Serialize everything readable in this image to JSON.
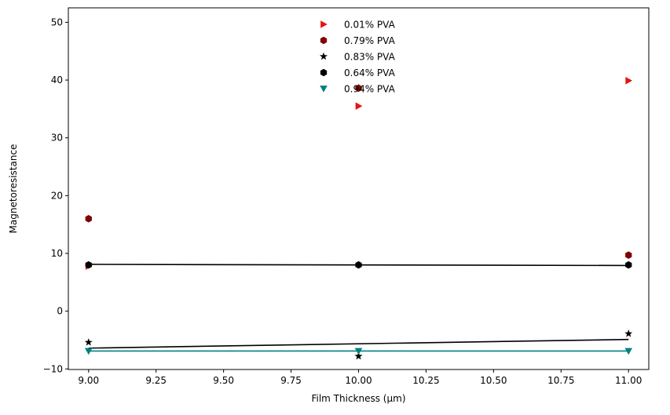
{
  "chart_data": {
    "type": "scatter",
    "title": "",
    "xlabel": "Film Thickness (μm)",
    "ylabel": "Magnetoresistance",
    "xlim": [
      8.925,
      11.075
    ],
    "ylim": [
      -10.1,
      52.5
    ],
    "xticks": [
      "9.00",
      "9.25",
      "9.50",
      "9.75",
      "10.00",
      "10.25",
      "10.50",
      "10.75",
      "11.00"
    ],
    "yticks": [
      "−10",
      "0",
      "10",
      "20",
      "30",
      "40",
      "50"
    ],
    "grid": false,
    "legend_position": "top-center",
    "series": [
      {
        "name": "0.01% PVA",
        "marker": "triangle-right",
        "color": "#e8120c",
        "x": [
          9,
          10,
          11
        ],
        "y": [
          7.8,
          35.5,
          39.9
        ]
      },
      {
        "name": "0.79% PVA",
        "marker": "hexagon",
        "color": "#800000",
        "x": [
          9,
          10,
          11
        ],
        "y": [
          16.0,
          38.6,
          9.7
        ]
      },
      {
        "name": "0.83% PVA",
        "marker": "star",
        "color": "#000000",
        "x": [
          9,
          10,
          11
        ],
        "y": [
          -5.4,
          -7.8,
          -3.9
        ]
      },
      {
        "name": "0.64% PVA",
        "marker": "hexagon",
        "color": "#000000",
        "x": [
          9,
          10,
          11
        ],
        "y": [
          8.0,
          8.0,
          8.0
        ]
      },
      {
        "name": "0.94% PVA",
        "marker": "triangle-down",
        "color": "#008080",
        "x": [
          9,
          10,
          11
        ],
        "y": [
          -6.9,
          -6.9,
          -6.9
        ]
      }
    ],
    "fit_lines": [
      {
        "color": "#000000",
        "x": [
          9,
          11
        ],
        "y": [
          8.1,
          7.9
        ]
      },
      {
        "color": "#000000",
        "x": [
          9,
          11
        ],
        "y": [
          -6.4,
          -4.9
        ]
      },
      {
        "color": "#008080",
        "x": [
          9,
          11
        ],
        "y": [
          -6.9,
          -6.9
        ]
      }
    ]
  }
}
